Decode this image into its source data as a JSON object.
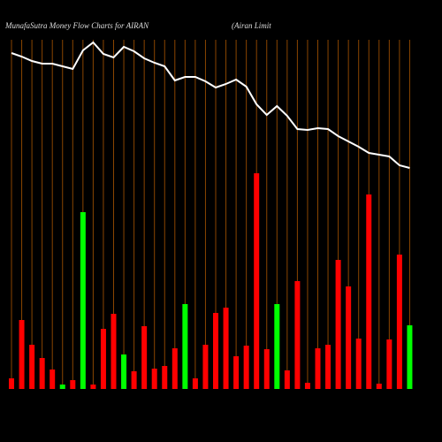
{
  "chart_data": {
    "type": "money_flow",
    "title": "MunafaSutra  Money Flow  Charts for AIRAN",
    "subtitle": "(Airan  Limit",
    "categories": [
      null,
      null,
      null,
      null,
      null,
      null,
      null,
      null,
      null,
      null,
      null,
      null,
      null,
      null,
      null,
      null,
      null,
      null,
      null,
      null,
      null,
      null,
      null,
      null,
      null,
      null,
      null,
      null,
      null,
      null,
      null,
      null,
      null,
      null,
      null,
      null,
      null,
      null,
      null,
      null
    ],
    "bar_values": [
      12,
      78,
      50,
      35,
      22,
      5,
      10,
      200,
      5,
      68,
      85,
      39,
      20,
      71,
      23,
      26,
      46,
      96,
      12,
      50,
      86,
      92,
      37,
      49,
      244,
      45,
      96,
      21,
      122,
      7,
      46,
      50,
      146,
      116,
      57,
      220,
      6,
      56,
      152,
      72
    ],
    "bar_colors": [
      "#ff0000",
      "#ff0000",
      "#ff0000",
      "#ff0000",
      "#ff0000",
      "#00ff00",
      "#ff0000",
      "#00ff00",
      "#ff0000",
      "#ff0000",
      "#ff0000",
      "#00ff00",
      "#ff0000",
      "#ff0000",
      "#ff0000",
      "#ff0000",
      "#ff0000",
      "#00ff00",
      "#ff0000",
      "#ff0000",
      "#ff0000",
      "#ff0000",
      "#ff0000",
      "#ff0000",
      "#ff0000",
      "#ff0000",
      "#00ff00",
      "#ff0000",
      "#ff0000",
      "#ff0000",
      "#ff0000",
      "#ff0000",
      "#ff0000",
      "#ff0000",
      "#ff0000",
      "#ff0000",
      "#ff0000",
      "#ff0000",
      "#ff0000",
      "#00ff00"
    ],
    "line_values": [
      380,
      376,
      371,
      368,
      368,
      365,
      362,
      383,
      392,
      379,
      375,
      387,
      382,
      374,
      369,
      365,
      349,
      353,
      353,
      348,
      341,
      345,
      350,
      342,
      322,
      310,
      320,
      309,
      294,
      293,
      295,
      294,
      286,
      280,
      274,
      267,
      265,
      263,
      253,
      250
    ],
    "line_color": "#ffffff",
    "ylim": [
      0,
      440
    ]
  }
}
